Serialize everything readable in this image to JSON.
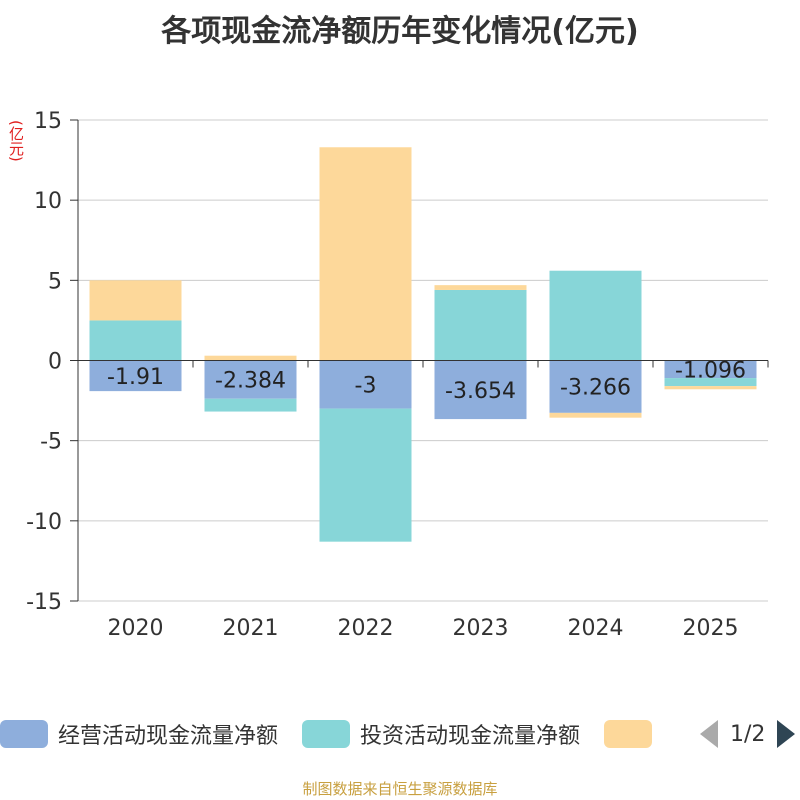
{
  "chart_data": {
    "type": "bar",
    "stacked": true,
    "title": "各项现金流净额历年变化情况(亿元)",
    "ylabel": "(亿元)",
    "xlabel": "",
    "ylim": [
      -15,
      15
    ],
    "yticks": [
      15,
      10,
      5,
      0,
      -5,
      -10,
      -15
    ],
    "categories": [
      "2020",
      "2021",
      "2022",
      "2023",
      "2024",
      "2025"
    ],
    "series": [
      {
        "name": "经营活动现金流量净额",
        "color": "#8eaedc",
        "values": [
          -1.91,
          -2.384,
          -3,
          -3.654,
          -3.266,
          -1.096
        ],
        "labels": [
          "-1.91",
          "-2.384",
          "-3",
          "-3.654",
          "-3.266",
          "-1.096"
        ]
      },
      {
        "name": "投资活动现金流量净额",
        "color": "#87d6d8",
        "values": [
          2.5,
          -0.8,
          -8.3,
          4.4,
          5.6,
          -0.5
        ]
      },
      {
        "name": "",
        "color": "#fdd89a",
        "values": [
          2.5,
          0.3,
          13.3,
          0.3,
          -0.3,
          -0.2
        ]
      }
    ],
    "legend_position": "bottom",
    "legend_page": "1/2",
    "source": "制图数据来自恒生聚源数据库"
  }
}
